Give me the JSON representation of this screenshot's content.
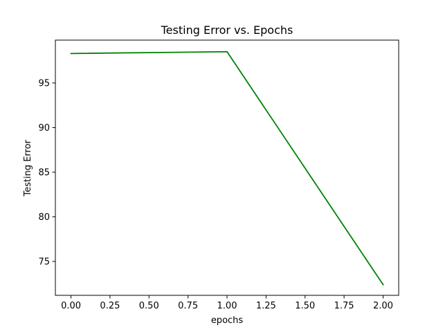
{
  "chart_data": {
    "type": "line",
    "title": "Testing Error vs. Epochs",
    "xlabel": "epochs",
    "ylabel": "Testing Error",
    "xlim": [
      -0.1,
      2.1
    ],
    "ylim": [
      71.2,
      99.8
    ],
    "xticks": [
      0.0,
      0.25,
      0.5,
      0.75,
      1.0,
      1.25,
      1.5,
      1.75,
      2.0
    ],
    "xtick_labels": [
      "0.00",
      "0.25",
      "0.50",
      "0.75",
      "1.00",
      "1.25",
      "1.50",
      "1.75",
      "2.00"
    ],
    "yticks": [
      75,
      80,
      85,
      90,
      95
    ],
    "ytick_labels": [
      "75",
      "80",
      "85",
      "90",
      "95"
    ],
    "grid": false,
    "legend": false,
    "series": [
      {
        "name": "testing error",
        "color": "#008000",
        "x": [
          0,
          1,
          2
        ],
        "values": [
          98.3,
          98.5,
          72.4
        ]
      }
    ]
  }
}
